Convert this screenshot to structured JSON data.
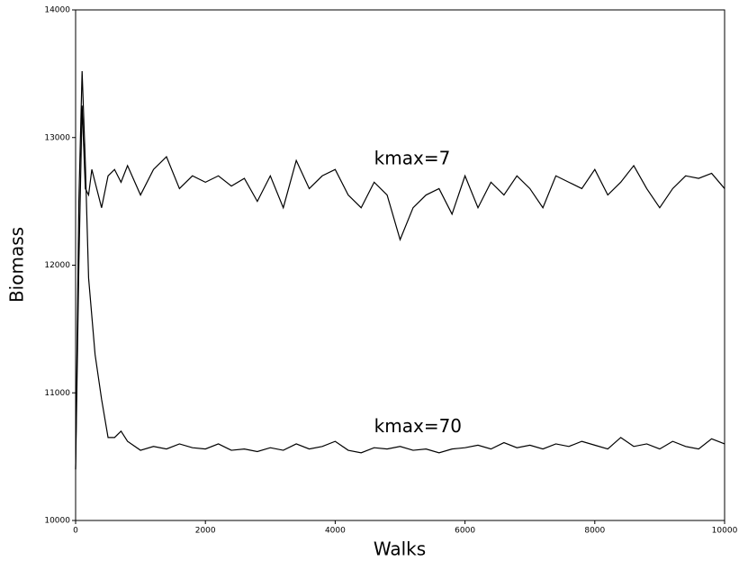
{
  "chart_data": {
    "type": "line",
    "xlabel": "Walks",
    "ylabel": "Biomass",
    "x": [
      0,
      50,
      100,
      150,
      200,
      250,
      300,
      400,
      500,
      600,
      700,
      800,
      1000,
      1200,
      1400,
      1600,
      1800,
      2000,
      2200,
      2400,
      2600,
      2800,
      3000,
      3200,
      3400,
      3600,
      3800,
      4000,
      4200,
      4400,
      4600,
      4800,
      5000,
      5200,
      5400,
      5600,
      5800,
      6000,
      6200,
      6400,
      6600,
      6800,
      7000,
      7200,
      7400,
      7600,
      7800,
      8000,
      8200,
      8400,
      8600,
      8800,
      9000,
      9200,
      9400,
      9600,
      9800,
      10000
    ],
    "series": [
      {
        "color": "#000000",
        "values": [
          10400,
          12000,
          13250,
          12600,
          12550,
          12750,
          12650,
          12450,
          12700,
          12750,
          12650,
          12780,
          12550,
          12750,
          12850,
          12600,
          12700,
          12650,
          12700,
          12620,
          12680,
          12500,
          12700,
          12450,
          12820,
          12600,
          12700,
          12750,
          12550,
          12450,
          12650,
          12550,
          12200,
          12450,
          12550,
          12600,
          12400,
          12700,
          12450,
          12650,
          12550,
          12700,
          12600,
          12450,
          12700,
          12650,
          12600,
          12750,
          12550,
          12650,
          12780,
          12600,
          12450,
          12600,
          12700,
          12680,
          12720,
          12600
        ]
      },
      {
        "color": "#000000",
        "values": [
          10400,
          12500,
          13520,
          12800,
          11900,
          11600,
          11300,
          10950,
          10650,
          10650,
          10700,
          10620,
          10550,
          10580,
          10560,
          10600,
          10570,
          10560,
          10600,
          10550,
          10560,
          10540,
          10570,
          10550,
          10600,
          10560,
          10580,
          10620,
          10550,
          10530,
          10570,
          10560,
          10580,
          10550,
          10560,
          10530,
          10560,
          10570,
          10590,
          10560,
          10610,
          10570,
          10590,
          10560,
          10600,
          10580,
          10620,
          10590,
          10560,
          10650,
          10580,
          10600,
          10560,
          10620,
          10580,
          10560,
          10640,
          10600
        ]
      }
    ],
    "annotations": [
      {
        "text": "kmax=7",
        "x": 4600,
        "y": 12830
      },
      {
        "text": "kmax=70",
        "x": 4600,
        "y": 10730
      }
    ],
    "xlim": [
      0,
      10000
    ],
    "xticks": [
      0,
      2000,
      4000,
      6000,
      8000,
      10000
    ],
    "ylim": [
      10000,
      14000
    ],
    "yticks": [
      10000,
      11000,
      12000,
      13000,
      14000
    ]
  }
}
